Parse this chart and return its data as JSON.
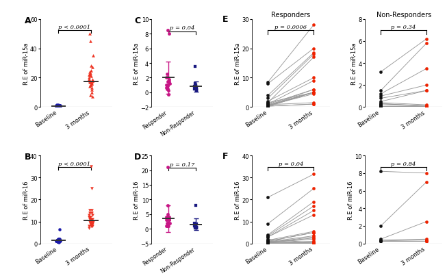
{
  "panel_A": {
    "ylabel": "R.E of miR-15a",
    "ptext": "p < 0.0001",
    "baseline": [
      0.5,
      0.3,
      0.8,
      1.2,
      0.4,
      0.6,
      1.5,
      0.9,
      0.3,
      0.7,
      0.5,
      0.2,
      1.0,
      0.8,
      0.6,
      1.3,
      0.4,
      0.7,
      0.9,
      1.1,
      0.3,
      0.5,
      0.8,
      0.6,
      1.4,
      0.7,
      0.4,
      0.9,
      0.6,
      0.3,
      1.2,
      0.5
    ],
    "months3": [
      18,
      22,
      25,
      10,
      15,
      17,
      19,
      28,
      35,
      18,
      12,
      22,
      19,
      27,
      14,
      16,
      20,
      24,
      45,
      50,
      17,
      18,
      8,
      15,
      22,
      17,
      13,
      16,
      19,
      21,
      23,
      7
    ],
    "mean_baseline": 0.7,
    "mean_3months": 17.5,
    "ylim": [
      0,
      60
    ],
    "yticks": [
      0,
      20,
      40,
      60
    ],
    "color_baseline": "#1a1aaa",
    "color_3months": "#EE3322",
    "marker_baseline": "o",
    "marker_3months": "^"
  },
  "panel_B": {
    "ylabel": "R.E of miR-16",
    "ptext": "p < 0.0001",
    "baseline": [
      1.5,
      1.0,
      2.0,
      1.8,
      1.2,
      0.8,
      1.5,
      2.2,
      1.0,
      1.3,
      0.9,
      1.6,
      1.1,
      0.7,
      6.5,
      1.4,
      1.2,
      1.8,
      1.0,
      0.5,
      1.3,
      1.6,
      0.9,
      1.1,
      1.4,
      1.7,
      1.0,
      0.8,
      1.2,
      1.5,
      1.9,
      2.1
    ],
    "months3": [
      10,
      12,
      8,
      15,
      11,
      9,
      13,
      35,
      10,
      8,
      25,
      12,
      10,
      11,
      14,
      9,
      7,
      15,
      10,
      12,
      8,
      13,
      10,
      9,
      11,
      12,
      10,
      14,
      8,
      10,
      12,
      9
    ],
    "mean_baseline": 1.5,
    "mean_3months": 10.5,
    "ylim": [
      0,
      40
    ],
    "yticks": [
      0,
      10,
      20,
      30,
      40
    ],
    "color_baseline": "#1a1aaa",
    "color_3months": "#EE3322",
    "marker_baseline": "o",
    "marker_3months": "v"
  },
  "panel_C": {
    "ylabel": "R.E of miR-15a",
    "ptext": "p = 0.04",
    "responder": [
      8.5,
      8.0,
      2.0,
      1.5,
      0.5,
      1.0,
      2.5,
      1.0,
      0.5,
      0.3,
      2.0,
      1.5,
      0.8,
      1.2,
      0.6,
      1.8,
      0.9,
      -0.3
    ],
    "nonresponder": [
      0.8,
      0.5,
      0.3,
      1.0,
      0.8,
      0.6,
      1.2,
      0.4,
      0.7,
      3.5,
      0.5,
      0.3,
      0.8,
      0.6
    ],
    "mean_responder": 2.0,
    "sd_responder": 2.2,
    "mean_nonresponder": 0.8,
    "sd_nonresponder": 0.7,
    "ylim": [
      -2,
      10
    ],
    "yticks": [
      -2,
      0,
      2,
      4,
      6,
      8,
      10
    ],
    "color_responder": "#C71585",
    "color_nonresponder": "#191980"
  },
  "panel_D": {
    "ylabel": "R.E of miR-16",
    "ptext": "p = 0.17",
    "responder": [
      21,
      4,
      3,
      8,
      2,
      1,
      3,
      4,
      2,
      1,
      5,
      3,
      1,
      2,
      4,
      3,
      1,
      2
    ],
    "nonresponder": [
      1.5,
      2.0,
      0.5,
      8,
      1.0,
      1.5,
      0.8,
      0.5,
      0.3,
      1.2,
      0.6,
      1.8,
      0.9,
      0.4
    ],
    "mean_responder": 3.5,
    "sd_responder": 4.5,
    "mean_nonresponder": 1.5,
    "sd_nonresponder": 2.0,
    "ylim": [
      -5,
      25
    ],
    "yticks": [
      -5,
      0,
      5,
      10,
      15,
      20,
      25
    ],
    "color_responder": "#C71585",
    "color_nonresponder": "#191980"
  },
  "panel_E_resp": {
    "title_col": "Responders",
    "panel_label": "E",
    "ptext": "p = 0.0006",
    "ylabel": "R.E of miR-15a",
    "baseline": [
      8.5,
      8.0,
      4.0,
      3.0,
      1.5,
      2.0,
      1.0,
      0.5,
      1.0,
      1.5,
      0.8,
      0.3,
      0.2,
      0.5,
      0.8,
      0.3,
      0.5,
      0.3
    ],
    "months3": [
      28.0,
      20.0,
      18.5,
      18.0,
      17.0,
      10.0,
      9.0,
      6.0,
      6.0,
      5.0,
      5.0,
      5.0,
      5.0,
      5.0,
      1.5,
      1.0,
      4.5,
      1.0
    ],
    "ylim": [
      0,
      30
    ],
    "yticks": [
      0,
      10,
      20,
      30
    ]
  },
  "panel_E_nonresp": {
    "title_col": "Non-Responders",
    "panel_label": "",
    "ptext": "p = 0.34",
    "ylabel": "R.E of miR-15a",
    "baseline": [
      3.2,
      1.5,
      1.2,
      1.0,
      0.8,
      0.5,
      0.4,
      0.3,
      0.3,
      0.2,
      0.1,
      0.1,
      0.1,
      0.1
    ],
    "months3": [
      6.2,
      5.8,
      3.5,
      2.0,
      1.5,
      1.5,
      0.2,
      0.1,
      0.1,
      0.1,
      0.1,
      0.1,
      0.1,
      0.1
    ],
    "ylim": [
      0,
      8
    ],
    "yticks": [
      0,
      2,
      4,
      6,
      8
    ]
  },
  "panel_F_resp": {
    "panel_label": "F",
    "ptext": "p = 0.04",
    "ylabel": "R.E of miR-16",
    "baseline": [
      21.0,
      9.0,
      4.0,
      3.5,
      3.0,
      3.0,
      1.5,
      1.0,
      1.0,
      0.8,
      0.5,
      0.5,
      0.5,
      0.3,
      0.5,
      1.0,
      2.0,
      0.3
    ],
    "months3": [
      31.5,
      25.0,
      19.0,
      17.0,
      15.0,
      13.0,
      5.5,
      5.0,
      5.0,
      3.5,
      3.0,
      2.5,
      2.0,
      1.0,
      0.5,
      0.5,
      0.3,
      0.3
    ],
    "ylim": [
      0,
      40
    ],
    "yticks": [
      0,
      10,
      20,
      30,
      40
    ]
  },
  "panel_F_nonresp": {
    "panel_label": "",
    "ptext": "p = 0.84",
    "ylabel": "R.E of miR-16",
    "baseline": [
      8.2,
      2.0,
      0.5,
      0.4,
      0.3,
      0.3,
      0.3,
      0.3,
      0.3,
      0.3,
      0.3,
      0.3,
      0.3,
      0.3
    ],
    "months3": [
      8.0,
      7.0,
      2.5,
      0.5,
      0.4,
      0.3,
      0.3,
      0.3,
      0.3,
      0.3,
      0.3,
      0.3,
      0.3,
      0.3
    ],
    "ylim": [
      0,
      10
    ],
    "yticks": [
      0,
      2,
      4,
      6,
      8,
      10
    ]
  },
  "black_dot_color": "#111111",
  "red_dot_color": "#EE2200",
  "line_color": "#999999",
  "bg_color": "#FFFFFF",
  "axis_line_color": "#888888"
}
